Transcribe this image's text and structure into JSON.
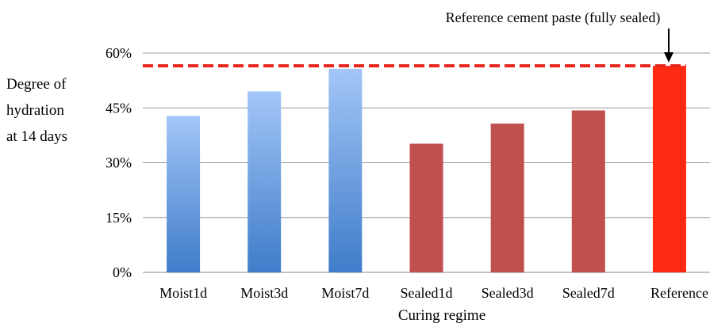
{
  "chart_data": {
    "type": "bar",
    "categories": [
      "Moist1d",
      "Moist3d",
      "Moist7d",
      "Sealed1d",
      "Sealed3d",
      "Sealed7d",
      "Reference"
    ],
    "values": [
      42.8,
      49.5,
      55.7,
      35.2,
      40.7,
      44.3,
      56.5
    ],
    "ylabel_lines": [
      "Degree of",
      "hydration",
      "at 14 days"
    ],
    "xlabel": "Curing regime",
    "ylim": [
      0,
      60
    ],
    "yticks": [
      "0%",
      "15%",
      "30%",
      "45%",
      "60%"
    ],
    "ytick_values": [
      0,
      15,
      30,
      45,
      60
    ],
    "grid": true,
    "reference_line": {
      "value": 56.5,
      "color": "#e8261e",
      "style": "dashed"
    },
    "annotation": "Reference cement paste (fully sealed)",
    "colors": {
      "moist_top": "#a3c6f7",
      "moist_bottom": "#3f7cc9",
      "sealed": "#c0504d",
      "reference": "#ff2a12"
    }
  }
}
